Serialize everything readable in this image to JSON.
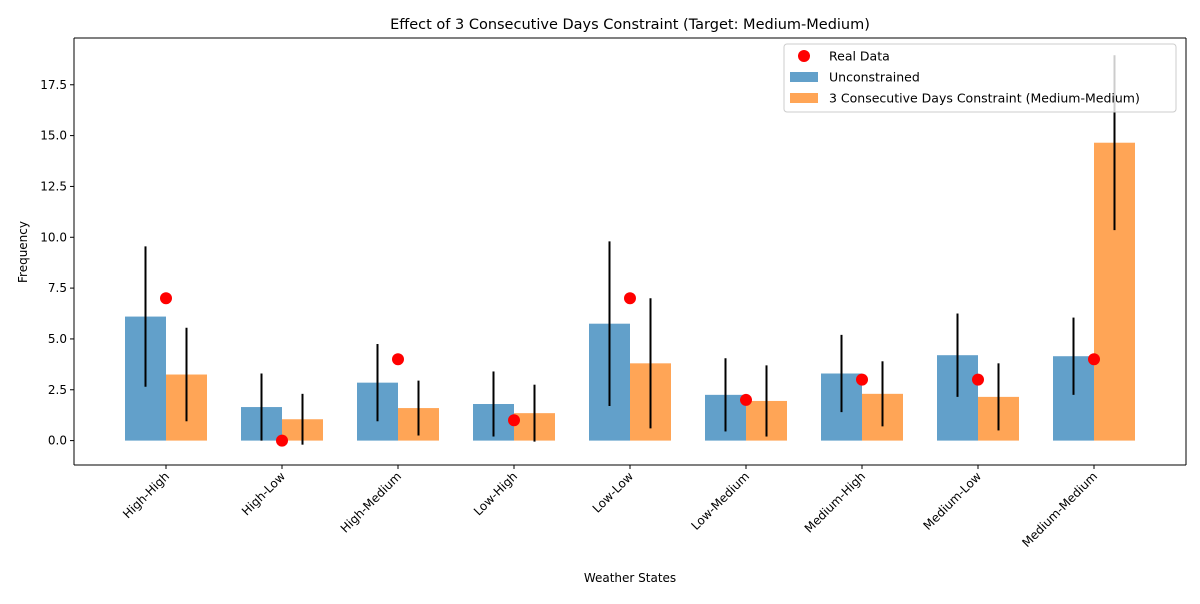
{
  "chart_data": {
    "type": "bar",
    "title": "Effect of 3 Consecutive Days Constraint (Target: Medium-Medium)",
    "xlabel": "Weather States",
    "ylabel": "Frequency",
    "ylim": [
      -1.2,
      19.8
    ],
    "yticks": [
      0.0,
      2.5,
      5.0,
      7.5,
      10.0,
      12.5,
      15.0,
      17.5
    ],
    "ytick_labels": [
      "0.0",
      "2.5",
      "5.0",
      "7.5",
      "10.0",
      "12.5",
      "15.0",
      "17.5"
    ],
    "categories": [
      "High-High",
      "High-Low",
      "High-Medium",
      "Low-High",
      "Low-Low",
      "Low-Medium",
      "Medium-High",
      "Medium-Low",
      "Medium-Medium"
    ],
    "series": [
      {
        "name": "Unconstrained",
        "color": "#1f77b4",
        "values": [
          6.1,
          1.65,
          2.85,
          1.8,
          5.75,
          2.25,
          3.3,
          4.2,
          4.15
        ],
        "error": [
          3.45,
          1.65,
          1.9,
          1.6,
          4.05,
          1.8,
          1.9,
          2.05,
          1.9
        ]
      },
      {
        "name": "3 Consecutive Days Constraint (Medium-Medium)",
        "color": "#ff7f0e",
        "values": [
          3.25,
          1.05,
          1.6,
          1.35,
          3.8,
          1.95,
          2.3,
          2.15,
          14.65
        ],
        "error": [
          2.3,
          1.25,
          1.35,
          1.4,
          3.2,
          1.75,
          1.6,
          1.65,
          4.3
        ]
      }
    ],
    "real_data": {
      "name": "Real Data",
      "color": "#ff0000",
      "values": [
        7,
        0,
        4,
        1,
        7,
        2,
        3,
        3,
        4
      ]
    },
    "legend_position": "top-right",
    "grid": false
  }
}
